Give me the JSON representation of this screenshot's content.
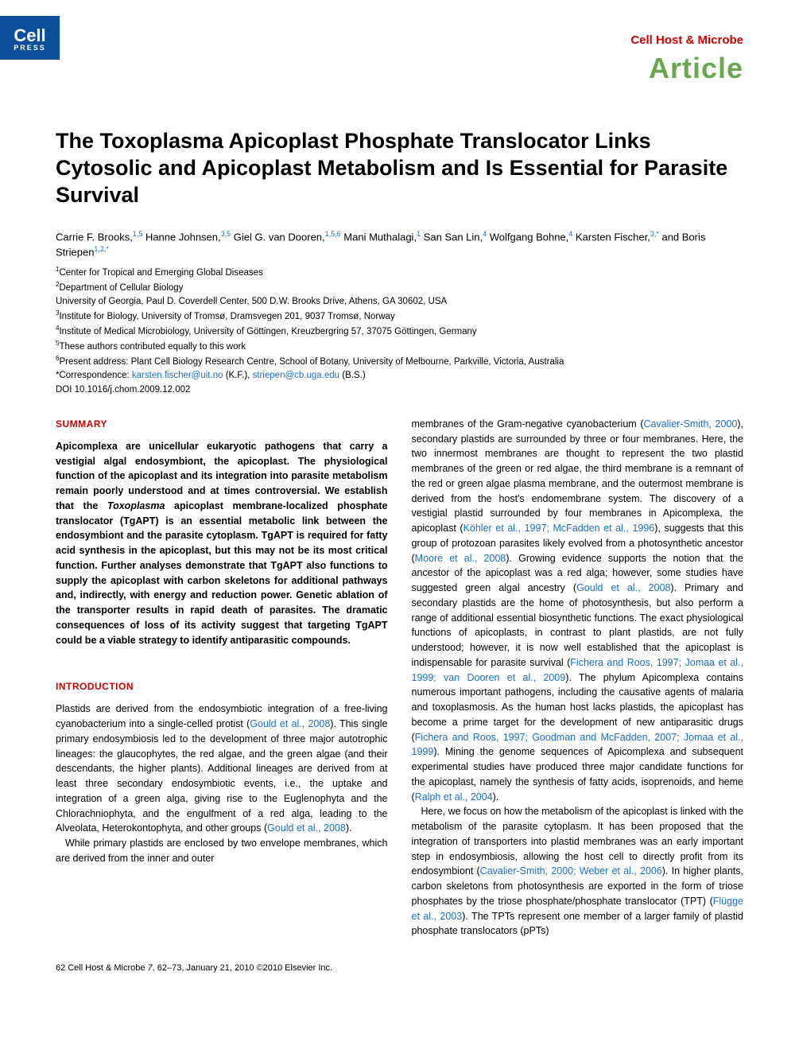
{
  "logo": {
    "main": "Cell",
    "sub": "PRESS"
  },
  "header": {
    "journal": "Cell Host & Microbe",
    "journal_color": "#cc0000",
    "article_type": "Article",
    "article_type_color": "#6aa84f"
  },
  "title": "The Toxoplasma Apicoplast Phosphate Translocator Links Cytosolic and Apicoplast Metabolism and Is Essential for Parasite Survival",
  "authors_html": "Carrie F. Brooks,<sup class='link'>1,5</sup> Hanne Johnsen,<sup class='link'>3,5</sup> Giel G. van Dooren,<sup class='link'>1,5,6</sup> Mani Muthalagi,<sup class='link'>1</sup> San San Lin,<sup class='link'>4</sup> Wolfgang Bohne,<sup class='link'>4</sup> Karsten Fischer,<sup class='link'>3,*</sup> and Boris Striepen<sup class='link'>1,2,*</sup>",
  "affiliations": [
    "<sup>1</sup>Center for Tropical and Emerging Global Diseases",
    "<sup>2</sup>Department of Cellular Biology",
    "University of Georgia, Paul D. Coverdell Center, 500 D.W. Brooks Drive, Athens, GA 30602, USA",
    "<sup>3</sup>Institute for Biology, University of Tromsø, Dramsvegen 201, 9037 Tromsø, Norway",
    "<sup>4</sup>Institute of Medical Microbiology, University of Göttingen, Kreuzbergring 57, 37075 Göttingen, Germany",
    "<sup>5</sup>These authors contributed equally to this work",
    "<sup>6</sup>Present address: Plant Cell Biology Research Centre, School of Botany, University of Melbourne, Parkville, Victoria, Australia",
    "*Correspondence: <span class='link'>karsten.fischer@uit.no</span> (K.F.), <span class='link'>striepen@cb.uga.edu</span> (B.S.)",
    "DOI 10.1016/j.chom.2009.12.002"
  ],
  "summary_head": "SUMMARY",
  "summary_text": "Apicomplexa are unicellular eukaryotic pathogens that carry a vestigial algal endosymbiont, the apicoplast. The physiological function of the apicoplast and its integration into parasite metabolism remain poorly understood and at times controversial. We establish that the <em>Toxoplasma</em> apicoplast membrane-localized phosphate translocator (TgAPT) is an essential metabolic link between the endosymbiont and the parasite cytoplasm. TgAPT is required for fatty acid synthesis in the apicoplast, but this may not be its most critical function. Further analyses demonstrate that TgAPT also functions to supply the apicoplast with carbon skeletons for additional pathways and, indirectly, with energy and reduction power. Genetic ablation of the transporter results in rapid death of parasites. The dramatic consequences of loss of its activity suggest that targeting TgAPT could be a viable strategy to identify antiparasitic compounds.",
  "intro_head": "INTRODUCTION",
  "intro_p1": "Plastids are derived from the endosymbiotic integration of a free-living cyanobacterium into a single-celled protist (<span class='link'>Gould et al., 2008</span>). This single primary endosymbiosis led to the development of three major autotrophic lineages: the glaucophytes, the red algae, and the green algae (and their descendants, the higher plants). Additional lineages are derived from at least three secondary endosymbiotic events, i.e., the uptake and integration of a green alga, giving rise to the Euglenophyta and the Chlorachniophyta, and the engulfment of a red alga, leading to the Alveolata, Heterokontophyta, and other groups (<span class='link'>Gould et al., 2008</span>).",
  "intro_p2": "While primary plastids are enclosed by two envelope membranes, which are derived from the inner and outer",
  "col2_p1": "membranes of the Gram-negative cyanobacterium (<span class='link'>Cavalier-Smith, 2000</span>), secondary plastids are surrounded by three or four membranes. Here, the two innermost membranes are thought to represent the two plastid membranes of the green or red algae, the third membrane is a remnant of the red or green algae plasma membrane, and the outermost membrane is derived from the host's endomembrane system. The discovery of a vestigial plastid surrounded by four membranes in Apicomplexa, the apicoplast (<span class='link'>Köhler et al., 1997; McFadden et al., 1996</span>), suggests that this group of protozoan parasites likely evolved from a photosynthetic ancestor (<span class='link'>Moore et al., 2008</span>). Growing evidence supports the notion that the ancestor of the apicoplast was a red alga; however, some studies have suggested green algal ancestry (<span class='link'>Gould et al., 2008</span>). Primary and secondary plastids are the home of photosynthesis, but also perform a range of additional essential biosynthetic functions. The exact physiological functions of apicoplasts, in contrast to plant plastids, are not fully understood; however, it is now well established that the apicoplast is indispensable for parasite survival (<span class='link'>Fichera and Roos, 1997; Jomaa et al., 1999; van Dooren et al., 2009</span>). The phylum Apicomplexa contains numerous important pathogens, including the causative agents of malaria and toxoplasmosis. As the human host lacks plastids, the apicoplast has become a prime target for the development of new antiparasitic drugs (<span class='link'>Fichera and Roos, 1997; Goodman and McFadden, 2007; Jomaa et al., 1999</span>). Mining the genome sequences of Apicomplexa and subsequent experimental studies have produced three major candidate functions for the apicoplast, namely the synthesis of fatty acids, isoprenoids, and heme (<span class='link'>Ralph et al., 2004</span>).",
  "col2_p2": "Here, we focus on how the metabolism of the apicoplast is linked with the metabolism of the parasite cytoplasm. It has been proposed that the integration of transporters into plastid membranes was an early important step in endosymbiosis, allowing the host cell to directly profit from its endosymbiont (<span class='link'>Cavalier-Smith, 2000; Weber et al., 2006</span>). In higher plants, carbon skeletons from photosynthesis are exported in the form of triose phosphates by the triose phosphate/phosphate translocator (TPT) (<span class='link'>Flügge et al., 2003</span>). The TPTs represent one member of a larger family of plastid phosphate translocators (pPTs)",
  "footer": "62    Cell Host & Microbe <em>7</em>, 62–73, January 21, 2010 ©2010 Elsevier Inc."
}
